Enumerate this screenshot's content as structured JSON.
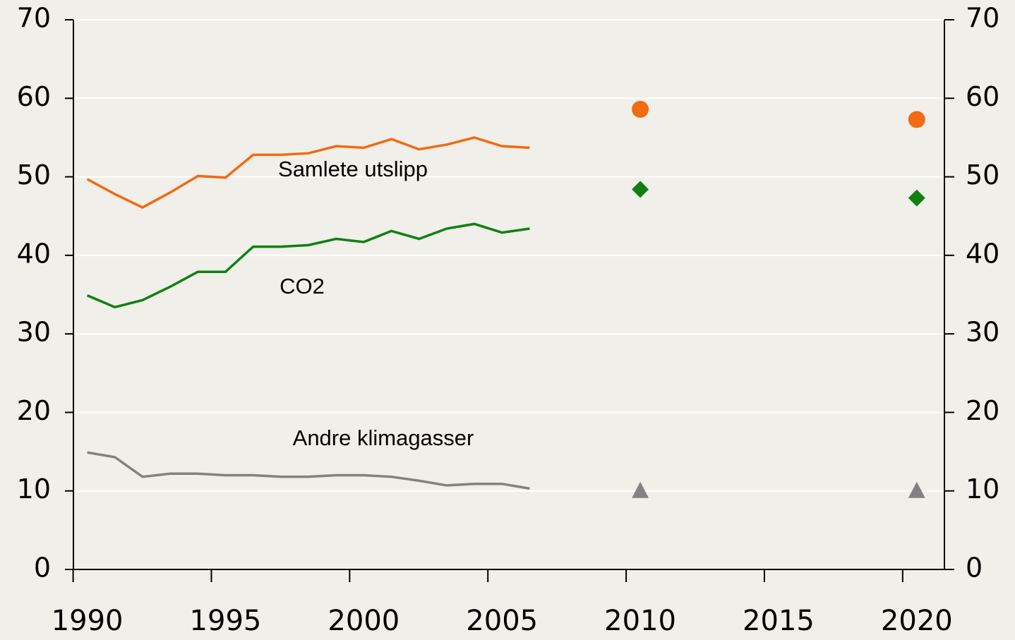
{
  "chart_data": {
    "type": "line",
    "x": [
      1990,
      1991,
      1992,
      1993,
      1994,
      1995,
      1996,
      1997,
      1998,
      1999,
      2000,
      2001,
      2002,
      2003,
      2004,
      2005,
      2006
    ],
    "series": [
      {
        "name": "Samlete utslipp",
        "color": "#f26a12",
        "values": [
          49.7,
          47.8,
          46.1,
          48.0,
          50.1,
          49.9,
          52.8,
          52.8,
          53.0,
          53.9,
          53.7,
          54.8,
          53.5,
          54.1,
          55.0,
          53.9,
          53.7
        ]
      },
      {
        "name": "CO2",
        "color": "#108010",
        "values": [
          34.9,
          33.4,
          34.3,
          36.0,
          37.9,
          37.9,
          41.1,
          41.1,
          41.3,
          42.1,
          41.7,
          43.1,
          42.1,
          43.4,
          44.0,
          42.9,
          43.4
        ]
      },
      {
        "name": "Andre klimagasser",
        "color": "#828282",
        "values": [
          14.9,
          14.3,
          11.8,
          12.2,
          12.2,
          12.0,
          12.0,
          11.8,
          11.8,
          12.0,
          12.0,
          11.8,
          11.3,
          10.7,
          10.9,
          10.9,
          10.3
        ]
      }
    ],
    "projections": {
      "x": [
        2010,
        2020
      ],
      "series": [
        {
          "color": "#f26a12",
          "marker": "circle",
          "values": [
            58.6,
            57.3
          ]
        },
        {
          "color": "#108010",
          "marker": "diamond",
          "values": [
            48.4,
            47.3
          ]
        },
        {
          "color": "#828282",
          "marker": "triangle",
          "values": [
            10.0,
            10.0
          ]
        }
      ]
    },
    "xlim": [
      1989.5,
      2021
    ],
    "xticks": [
      1990,
      1995,
      2000,
      2005,
      2010,
      2015,
      2020
    ],
    "ylim": [
      0,
      70
    ],
    "yticks": [
      0,
      10,
      20,
      30,
      40,
      50,
      60,
      70
    ],
    "y2lim": [
      0,
      70
    ],
    "y2ticks": [
      0,
      10,
      20,
      30,
      40,
      50,
      60,
      70
    ],
    "grid": true
  }
}
